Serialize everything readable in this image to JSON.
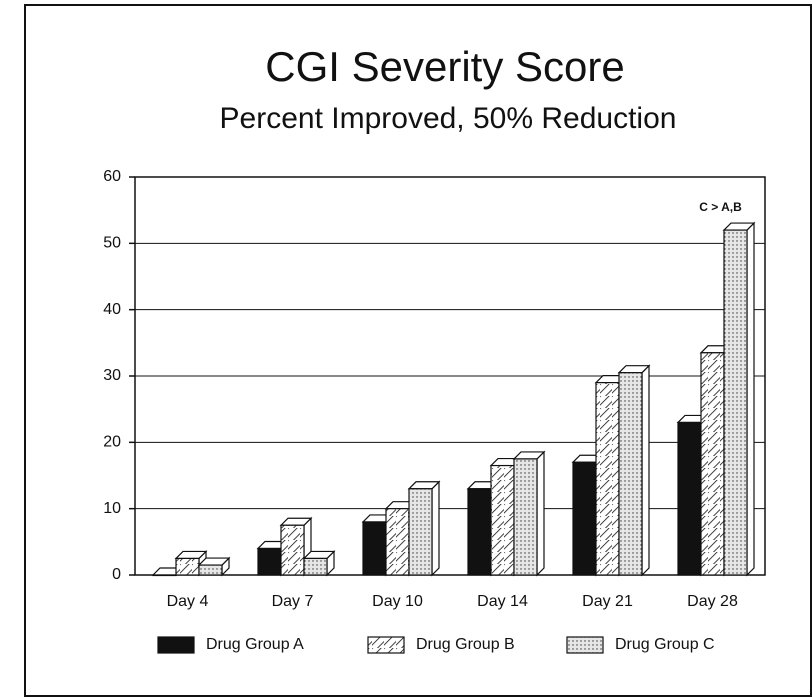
{
  "chart_data": {
    "type": "bar",
    "title": "CGI Severity Score",
    "subtitle": "Percent Improved, 50% Reduction",
    "annotation": "C > A,B",
    "categories": [
      "Day 4",
      "Day 7",
      "Day 10",
      "Day 14",
      "Day 21",
      "Day 28"
    ],
    "series": [
      {
        "name": "Drug Group A",
        "color": "#111111",
        "values": [
          0,
          4,
          8,
          13,
          17,
          23
        ]
      },
      {
        "name": "Drug Group B",
        "color": "#ffffff",
        "values": [
          2.5,
          7.5,
          10,
          16.5,
          29,
          33.5
        ]
      },
      {
        "name": "Drug Group C",
        "color": "#e6e6e6",
        "values": [
          1.5,
          2.5,
          13,
          17.5,
          30.5,
          52
        ]
      }
    ],
    "ylim": [
      0,
      60
    ],
    "yticks": [
      0,
      10,
      20,
      30,
      40,
      50,
      60
    ],
    "grid": true
  }
}
